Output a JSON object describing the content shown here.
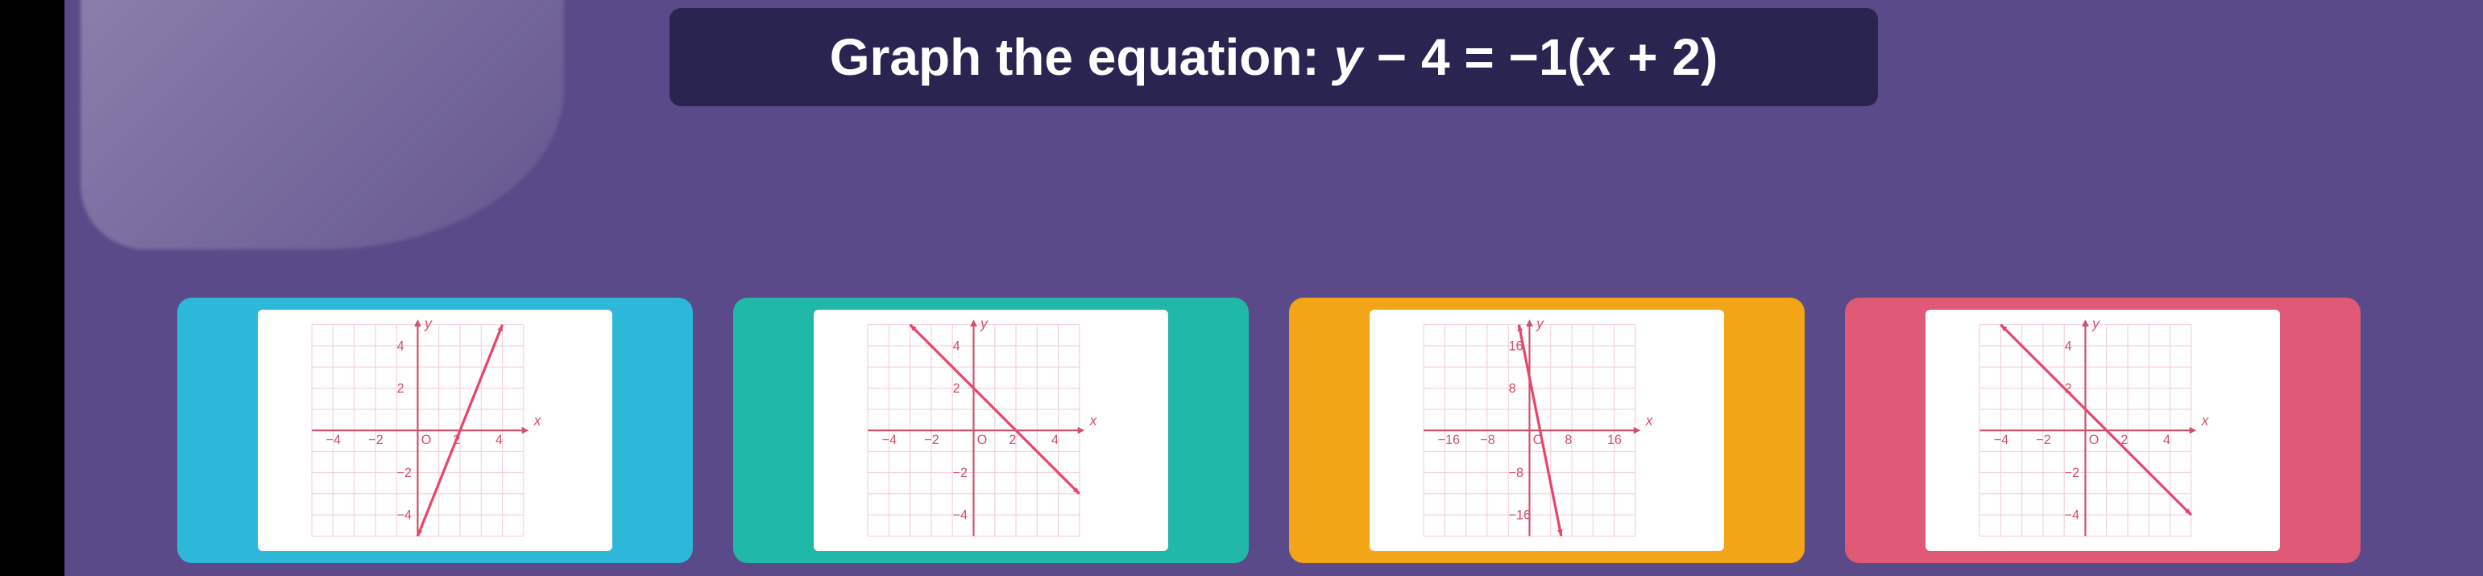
{
  "question": "Graph the equation: y − 4 = −1(x + 2)",
  "colors": {
    "bg": "#5a4a8a",
    "panel": "#2a2450",
    "grid": "#f2cfd6",
    "axis": "#d0506a",
    "line": "#e8456a"
  },
  "options": [
    {
      "card_color": "#2db7d9",
      "axis": {
        "min": -5,
        "max": 5,
        "step": 1,
        "xticks": [
          -4,
          -2,
          2,
          4
        ],
        "yticks": [
          -4,
          -2,
          2,
          4
        ]
      },
      "line": {
        "x1": 0,
        "y1": -5,
        "x2": 4,
        "y2": 5,
        "arrows": true
      }
    },
    {
      "card_color": "#20b8a8",
      "axis": {
        "min": -5,
        "max": 5,
        "step": 1,
        "xticks": [
          -4,
          -2,
          2,
          4
        ],
        "yticks": [
          -4,
          -2,
          2,
          4
        ]
      },
      "line": {
        "x1": -3,
        "y1": 5,
        "x2": 5,
        "y2": -3,
        "arrows": true
      }
    },
    {
      "card_color": "#f2a516",
      "axis": {
        "min": -20,
        "max": 20,
        "step": 4,
        "xticks": [
          -16,
          -8,
          8,
          16
        ],
        "yticks": [
          -16,
          -8,
          8,
          16
        ]
      },
      "line": {
        "x1": -2,
        "y1": 20,
        "x2": 6,
        "y2": -20,
        "arrows": true
      }
    },
    {
      "card_color": "#e05a78",
      "axis": {
        "min": -5,
        "max": 5,
        "step": 1,
        "xticks": [
          -4,
          -2,
          2,
          4
        ],
        "yticks": [
          -4,
          -2,
          2,
          4
        ]
      },
      "line": {
        "x1": -4,
        "y1": 5,
        "x2": 5,
        "y2": -4,
        "arrows": true
      }
    }
  ]
}
